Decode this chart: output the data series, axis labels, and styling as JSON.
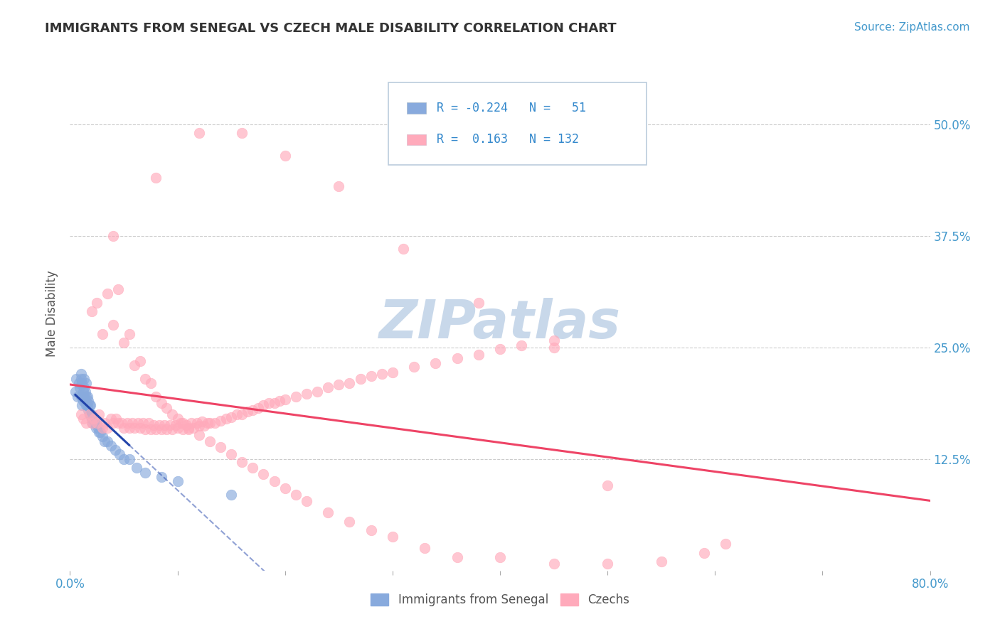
{
  "title": "IMMIGRANTS FROM SENEGAL VS CZECH MALE DISABILITY CORRELATION CHART",
  "source": "Source: ZipAtlas.com",
  "ylabel": "Male Disability",
  "legend_labels": [
    "Immigrants from Senegal",
    "Czechs"
  ],
  "r_senegal": -0.224,
  "n_senegal": 51,
  "r_czechs": 0.163,
  "n_czechs": 132,
  "xlim": [
    0.0,
    0.8
  ],
  "ylim": [
    0.0,
    0.575
  ],
  "ytick_vals": [
    0.0,
    0.125,
    0.25,
    0.375,
    0.5
  ],
  "ytick_labels": [
    "",
    "12.5%",
    "25.0%",
    "37.5%",
    "50.0%"
  ],
  "color_senegal": "#88aadd",
  "color_czechs": "#ffaabb",
  "line_color_senegal": "#2244aa",
  "line_color_czechs": "#ee4466",
  "background_color": "#ffffff",
  "grid_color": "#cccccc",
  "watermark_text": "ZIPatlas",
  "watermark_color": "#c8d8ea",
  "title_color": "#333333",
  "axis_label_color": "#555555",
  "tick_label_color": "#4499cc",
  "legend_r_color": "#3388cc",
  "senegal_x": [
    0.005,
    0.006,
    0.007,
    0.008,
    0.009,
    0.01,
    0.01,
    0.01,
    0.011,
    0.011,
    0.012,
    0.012,
    0.013,
    0.013,
    0.013,
    0.014,
    0.014,
    0.015,
    0.015,
    0.015,
    0.016,
    0.016,
    0.017,
    0.017,
    0.018,
    0.018,
    0.019,
    0.019,
    0.02,
    0.02,
    0.021,
    0.022,
    0.023,
    0.024,
    0.025,
    0.026,
    0.027,
    0.028,
    0.03,
    0.032,
    0.035,
    0.038,
    0.042,
    0.046,
    0.05,
    0.055,
    0.062,
    0.07,
    0.085,
    0.1,
    0.15
  ],
  "senegal_y": [
    0.2,
    0.215,
    0.195,
    0.21,
    0.205,
    0.22,
    0.195,
    0.215,
    0.185,
    0.21,
    0.2,
    0.19,
    0.195,
    0.205,
    0.215,
    0.19,
    0.2,
    0.185,
    0.195,
    0.21,
    0.185,
    0.195,
    0.18,
    0.19,
    0.175,
    0.185,
    0.175,
    0.185,
    0.17,
    0.175,
    0.165,
    0.17,
    0.165,
    0.16,
    0.165,
    0.16,
    0.155,
    0.155,
    0.15,
    0.145,
    0.145,
    0.14,
    0.135,
    0.13,
    0.125,
    0.125,
    0.115,
    0.11,
    0.105,
    0.1,
    0.085
  ],
  "czechs_x": [
    0.01,
    0.012,
    0.015,
    0.018,
    0.02,
    0.022,
    0.025,
    0.027,
    0.03,
    0.032,
    0.035,
    0.038,
    0.04,
    0.043,
    0.045,
    0.048,
    0.05,
    0.053,
    0.055,
    0.058,
    0.06,
    0.063,
    0.065,
    0.068,
    0.07,
    0.073,
    0.075,
    0.078,
    0.08,
    0.083,
    0.085,
    0.088,
    0.09,
    0.093,
    0.095,
    0.098,
    0.1,
    0.103,
    0.105,
    0.108,
    0.11,
    0.113,
    0.115,
    0.118,
    0.12,
    0.123,
    0.125,
    0.128,
    0.13,
    0.135,
    0.14,
    0.145,
    0.15,
    0.155,
    0.16,
    0.165,
    0.17,
    0.175,
    0.18,
    0.185,
    0.19,
    0.195,
    0.2,
    0.21,
    0.22,
    0.23,
    0.24,
    0.25,
    0.26,
    0.27,
    0.28,
    0.29,
    0.3,
    0.32,
    0.34,
    0.36,
    0.38,
    0.4,
    0.42,
    0.45,
    0.02,
    0.025,
    0.03,
    0.035,
    0.04,
    0.045,
    0.05,
    0.055,
    0.06,
    0.065,
    0.07,
    0.075,
    0.08,
    0.085,
    0.09,
    0.095,
    0.1,
    0.105,
    0.11,
    0.12,
    0.13,
    0.14,
    0.15,
    0.16,
    0.17,
    0.18,
    0.19,
    0.2,
    0.21,
    0.22,
    0.24,
    0.26,
    0.28,
    0.3,
    0.33,
    0.36,
    0.4,
    0.45,
    0.5,
    0.55,
    0.59,
    0.61,
    0.5,
    0.04,
    0.08,
    0.12,
    0.16,
    0.2,
    0.25,
    0.31,
    0.38,
    0.45
  ],
  "czechs_y": [
    0.175,
    0.17,
    0.165,
    0.175,
    0.165,
    0.17,
    0.165,
    0.175,
    0.16,
    0.165,
    0.16,
    0.17,
    0.165,
    0.17,
    0.165,
    0.165,
    0.16,
    0.165,
    0.16,
    0.165,
    0.16,
    0.165,
    0.16,
    0.165,
    0.158,
    0.165,
    0.158,
    0.163,
    0.158,
    0.163,
    0.158,
    0.163,
    0.158,
    0.163,
    0.158,
    0.163,
    0.16,
    0.165,
    0.158,
    0.163,
    0.16,
    0.165,
    0.16,
    0.165,
    0.162,
    0.167,
    0.162,
    0.165,
    0.165,
    0.165,
    0.168,
    0.17,
    0.172,
    0.175,
    0.175,
    0.178,
    0.18,
    0.182,
    0.185,
    0.188,
    0.188,
    0.19,
    0.192,
    0.195,
    0.198,
    0.2,
    0.205,
    0.208,
    0.21,
    0.215,
    0.218,
    0.22,
    0.222,
    0.228,
    0.232,
    0.238,
    0.242,
    0.248,
    0.252,
    0.258,
    0.29,
    0.3,
    0.265,
    0.31,
    0.275,
    0.315,
    0.255,
    0.265,
    0.23,
    0.235,
    0.215,
    0.21,
    0.195,
    0.188,
    0.182,
    0.175,
    0.17,
    0.165,
    0.158,
    0.152,
    0.145,
    0.138,
    0.13,
    0.122,
    0.115,
    0.108,
    0.1,
    0.092,
    0.085,
    0.078,
    0.065,
    0.055,
    0.045,
    0.038,
    0.025,
    0.015,
    0.015,
    0.008,
    0.008,
    0.01,
    0.02,
    0.03,
    0.095,
    0.375,
    0.44,
    0.49,
    0.49,
    0.465,
    0.43,
    0.36,
    0.3,
    0.25
  ]
}
